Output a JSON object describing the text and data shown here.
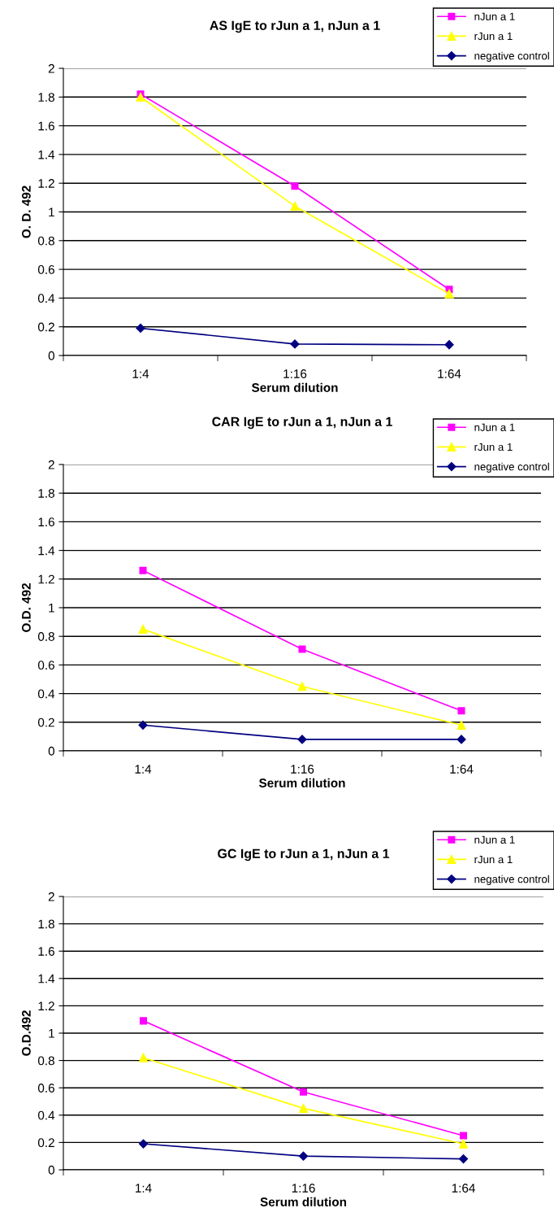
{
  "chart_data": [
    {
      "type": "line",
      "title": "AS IgE to rJun a 1, nJun a 1",
      "xlabel": "Serum dilution",
      "ylabel": "O. D. 492",
      "categories": [
        "1:4",
        "1:16",
        "1:64"
      ],
      "ylim": [
        0,
        2
      ],
      "yticks": [
        0,
        0.2,
        0.4,
        0.6,
        0.8,
        1,
        1.2,
        1.4,
        1.6,
        1.8,
        2
      ],
      "grid": "y",
      "legend": "top right",
      "series": [
        {
          "name": "nJun a 1",
          "color": "#ff00ff",
          "marker": "square",
          "values": [
            1.82,
            1.18,
            0.46
          ]
        },
        {
          "name": "rJun a 1",
          "color": "#ffff00",
          "marker": "triangle",
          "values": [
            1.8,
            1.04,
            0.43
          ]
        },
        {
          "name": "negative control",
          "color": "#000080",
          "marker": "diamond",
          "values": [
            0.19,
            0.08,
            0.075
          ]
        }
      ]
    },
    {
      "type": "line",
      "title": "CAR IgE to rJun a 1, nJun a 1",
      "xlabel": "Serum dilution",
      "ylabel": "O.D. 492",
      "categories": [
        "1:4",
        "1:16",
        "1:64"
      ],
      "ylim": [
        0,
        2
      ],
      "yticks": [
        0,
        0.2,
        0.4,
        0.6,
        0.8,
        1,
        1.2,
        1.4,
        1.6,
        1.8,
        2
      ],
      "grid": "y",
      "legend": "top right",
      "series": [
        {
          "name": "nJun a 1",
          "color": "#ff00ff",
          "marker": "square",
          "values": [
            1.26,
            0.71,
            0.28
          ]
        },
        {
          "name": "rJun a 1",
          "color": "#ffff00",
          "marker": "triangle",
          "values": [
            0.85,
            0.45,
            0.18
          ]
        },
        {
          "name": "negative control",
          "color": "#000080",
          "marker": "diamond",
          "values": [
            0.18,
            0.08,
            0.08
          ]
        }
      ]
    },
    {
      "type": "line",
      "title": "GC IgE to rJun a 1, nJun a 1",
      "xlabel": "Serum dilution",
      "ylabel": "O.D.492",
      "categories": [
        "1:4",
        "1:16",
        "1:64"
      ],
      "ylim": [
        0,
        2
      ],
      "yticks": [
        0,
        0.2,
        0.4,
        0.6,
        0.8,
        1,
        1.2,
        1.4,
        1.6,
        1.8,
        2
      ],
      "grid": "y",
      "legend": "top right",
      "series": [
        {
          "name": "nJun a 1",
          "color": "#ff00ff",
          "marker": "square",
          "values": [
            1.09,
            0.57,
            0.25
          ]
        },
        {
          "name": "rJun a 1",
          "color": "#ffff00",
          "marker": "triangle",
          "values": [
            0.82,
            0.45,
            0.19
          ]
        },
        {
          "name": "negative control",
          "color": "#000080",
          "marker": "diamond",
          "values": [
            0.19,
            0.1,
            0.08
          ]
        }
      ]
    }
  ]
}
